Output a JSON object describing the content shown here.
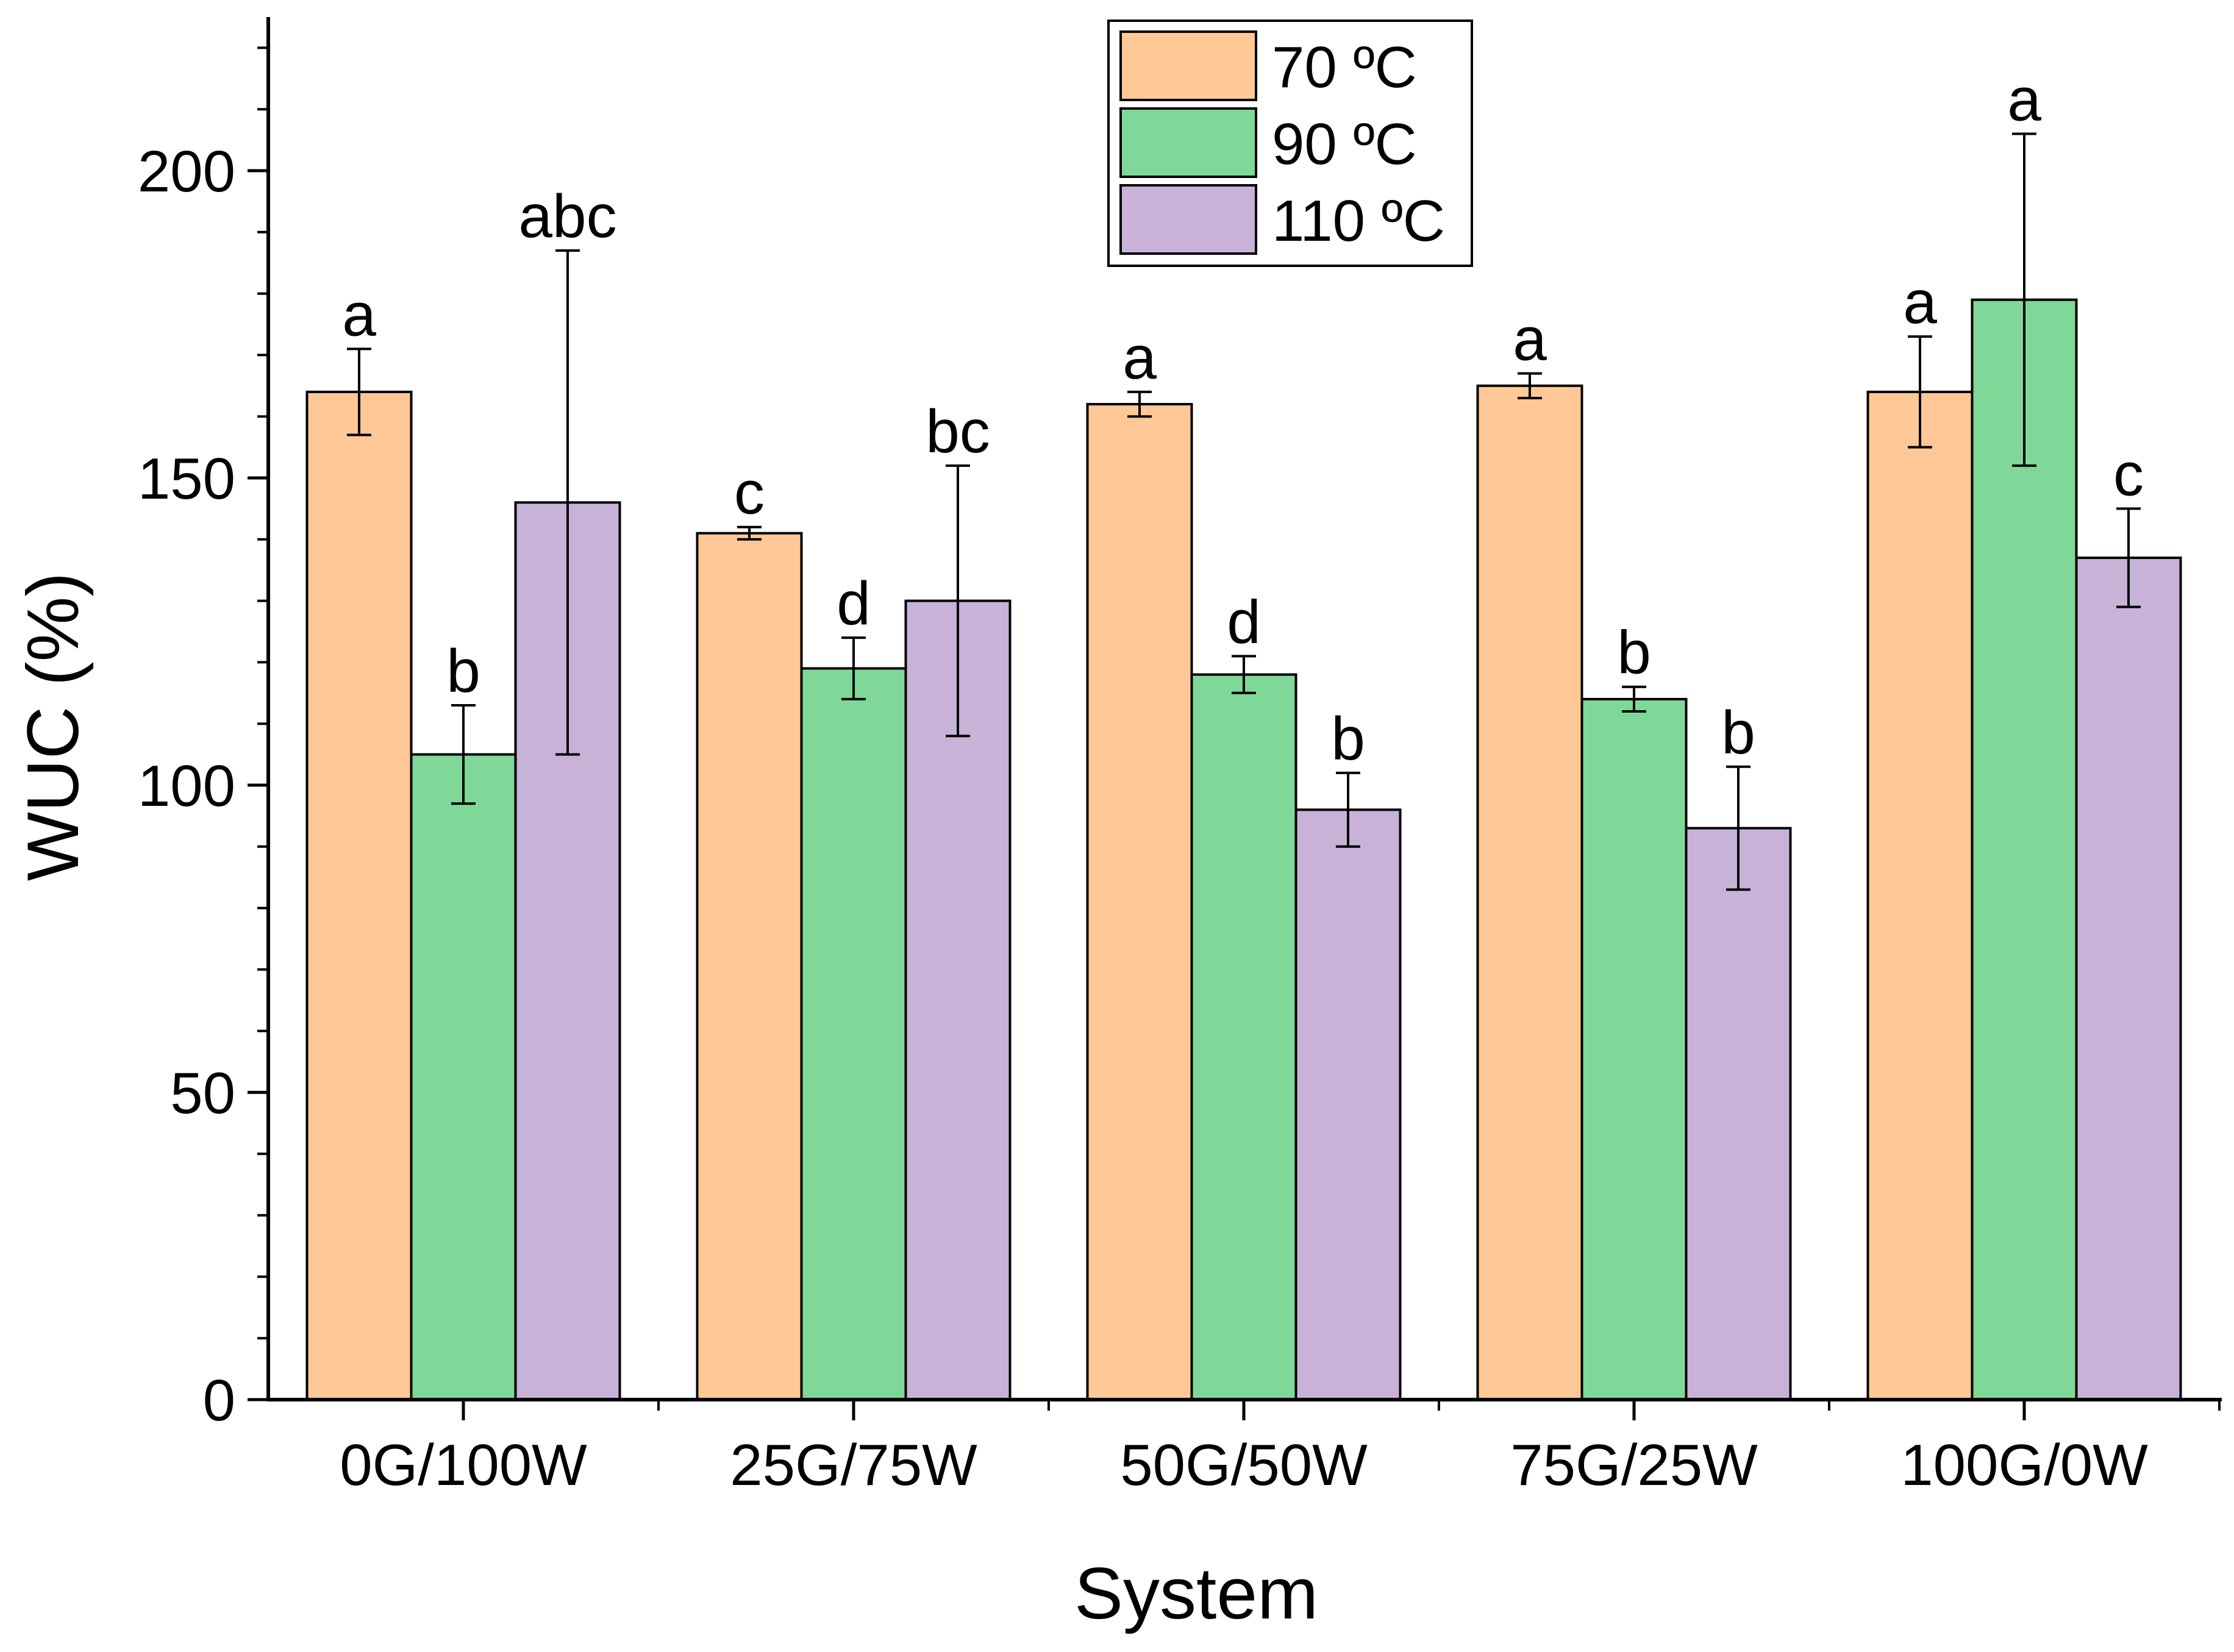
{
  "chart_data": {
    "type": "bar",
    "title": "",
    "xlabel": "System",
    "ylabel": "WUC (%)",
    "ylim": [
      0,
      225
    ],
    "yticks": [
      0,
      50,
      100,
      150,
      200
    ],
    "categories": [
      "0G/100W",
      "25G/75W",
      "50G/50W",
      "75G/25W",
      "100G/0W"
    ],
    "series": [
      {
        "name": "70 ºC",
        "color": "#ffc896",
        "values": [
          164,
          141,
          162,
          165,
          164
        ],
        "errors": [
          7,
          1,
          2,
          2,
          9
        ],
        "letters": [
          "a",
          "c",
          "a",
          "a",
          "a"
        ]
      },
      {
        "name": "90 ºC",
        "color": "#80d898",
        "values": [
          105,
          119,
          118,
          114,
          179
        ],
        "errors": [
          8,
          5,
          3,
          2,
          27
        ],
        "letters": [
          "b",
          "d",
          "d",
          "b",
          "a"
        ]
      },
      {
        "name": "110 ºC",
        "color": "#c8b2d8",
        "values": [
          146,
          130,
          96,
          93,
          137
        ],
        "errors": [
          41,
          22,
          6,
          10,
          8
        ],
        "letters": [
          "abc",
          "bc",
          "b",
          "b",
          "c"
        ]
      }
    ],
    "legend_position": "top-center",
    "grid": false
  }
}
